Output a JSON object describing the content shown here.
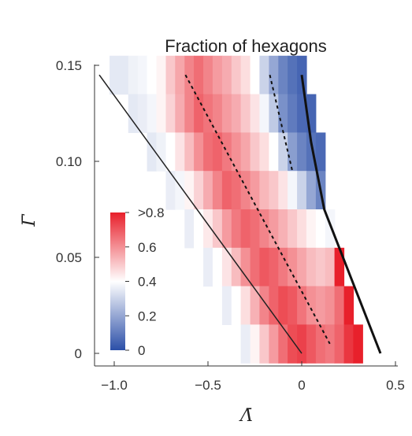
{
  "chart_data": {
    "type": "heatmap",
    "title": "Fraction of hexagons",
    "xlabel": "Λ̄",
    "ylabel": "Γ̄",
    "xlim": [
      -1.1,
      0.5
    ],
    "ylim": [
      0,
      0.15
    ],
    "x_ticks": [
      "−1.0",
      "−0.5",
      "0",
      "0.5"
    ],
    "x_tick_values": [
      -1.0,
      -0.5,
      0,
      0.5
    ],
    "y_ticks": [
      "0",
      "0.05",
      "0.10",
      "0.15"
    ],
    "y_tick_values": [
      0,
      0.05,
      0.1,
      0.15
    ],
    "grid": false,
    "colorbar": {
      "labels": [
        ">0.8",
        "0.6",
        "0.4",
        "0.2",
        "0"
      ],
      "values": [
        0.8,
        0.6,
        0.4,
        0.2,
        0
      ],
      "colors": {
        "low": "#2b4fa8",
        "mid": "#ffffff",
        "high": "#e8202b"
      },
      "placement": "inside-left"
    },
    "heatmap_rows": [
      {
        "y": 0.145,
        "cells": [
          {
            "x": -1.0,
            "v": 0.35
          },
          {
            "x": -0.95,
            "v": 0.35
          },
          {
            "x": -0.9,
            "v": 0.37
          },
          {
            "x": -0.85,
            "v": 0.38
          },
          {
            "x": -0.8,
            "v": 0.4
          },
          {
            "x": -0.75,
            "v": 0.42
          },
          {
            "x": -0.7,
            "v": 0.5
          },
          {
            "x": -0.65,
            "v": 0.56
          },
          {
            "x": -0.6,
            "v": 0.62
          },
          {
            "x": -0.55,
            "v": 0.66
          },
          {
            "x": -0.5,
            "v": 0.62
          },
          {
            "x": -0.45,
            "v": 0.58
          },
          {
            "x": -0.4,
            "v": 0.55
          },
          {
            "x": -0.35,
            "v": 0.5
          },
          {
            "x": -0.3,
            "v": 0.46
          },
          {
            "x": -0.25,
            "v": 0.4
          },
          {
            "x": -0.2,
            "v": 0.3
          },
          {
            "x": -0.15,
            "v": 0.2
          },
          {
            "x": -0.1,
            "v": 0.12
          },
          {
            "x": -0.05,
            "v": 0.08
          },
          {
            "x": 0.0,
            "v": 0.05
          }
        ]
      },
      {
        "y": 0.125,
        "cells": [
          {
            "x": -0.9,
            "v": 0.35
          },
          {
            "x": -0.85,
            "v": 0.36
          },
          {
            "x": -0.8,
            "v": 0.38
          },
          {
            "x": -0.75,
            "v": 0.42
          },
          {
            "x": -0.7,
            "v": 0.48
          },
          {
            "x": -0.65,
            "v": 0.55
          },
          {
            "x": -0.6,
            "v": 0.62
          },
          {
            "x": -0.55,
            "v": 0.68
          },
          {
            "x": -0.5,
            "v": 0.65
          },
          {
            "x": -0.45,
            "v": 0.62
          },
          {
            "x": -0.4,
            "v": 0.58
          },
          {
            "x": -0.35,
            "v": 0.55
          },
          {
            "x": -0.3,
            "v": 0.5
          },
          {
            "x": -0.25,
            "v": 0.45
          },
          {
            "x": -0.2,
            "v": 0.38
          },
          {
            "x": -0.15,
            "v": 0.28
          },
          {
            "x": -0.1,
            "v": 0.15
          },
          {
            "x": -0.05,
            "v": 0.1
          },
          {
            "x": 0.0,
            "v": 0.06
          },
          {
            "x": 0.05,
            "v": 0.05
          }
        ]
      },
      {
        "y": 0.105,
        "cells": [
          {
            "x": -0.8,
            "v": 0.35
          },
          {
            "x": -0.75,
            "v": 0.37
          },
          {
            "x": -0.7,
            "v": 0.4
          },
          {
            "x": -0.65,
            "v": 0.45
          },
          {
            "x": -0.6,
            "v": 0.52
          },
          {
            "x": -0.55,
            "v": 0.6
          },
          {
            "x": -0.5,
            "v": 0.66
          },
          {
            "x": -0.45,
            "v": 0.68
          },
          {
            "x": -0.4,
            "v": 0.64
          },
          {
            "x": -0.35,
            "v": 0.6
          },
          {
            "x": -0.3,
            "v": 0.56
          },
          {
            "x": -0.25,
            "v": 0.5
          },
          {
            "x": -0.2,
            "v": 0.46
          },
          {
            "x": -0.15,
            "v": 0.4
          },
          {
            "x": -0.1,
            "v": 0.3
          },
          {
            "x": -0.05,
            "v": 0.18
          },
          {
            "x": 0.0,
            "v": 0.12
          },
          {
            "x": 0.05,
            "v": 0.08
          },
          {
            "x": 0.1,
            "v": 0.06
          }
        ]
      },
      {
        "y": 0.085,
        "cells": [
          {
            "x": -0.7,
            "v": 0.36
          },
          {
            "x": -0.65,
            "v": 0.38
          },
          {
            "x": -0.6,
            "v": 0.42
          },
          {
            "x": -0.55,
            "v": 0.48
          },
          {
            "x": -0.5,
            "v": 0.55
          },
          {
            "x": -0.45,
            "v": 0.62
          },
          {
            "x": -0.4,
            "v": 0.68
          },
          {
            "x": -0.35,
            "v": 0.66
          },
          {
            "x": -0.3,
            "v": 0.62
          },
          {
            "x": -0.25,
            "v": 0.58
          },
          {
            "x": -0.2,
            "v": 0.53
          },
          {
            "x": -0.15,
            "v": 0.5
          },
          {
            "x": -0.1,
            "v": 0.45
          },
          {
            "x": -0.05,
            "v": 0.38
          },
          {
            "x": 0.0,
            "v": 0.3
          },
          {
            "x": 0.05,
            "v": 0.2
          },
          {
            "x": 0.1,
            "v": 0.12
          }
        ]
      },
      {
        "y": 0.065,
        "cells": [
          {
            "x": -0.6,
            "v": 0.36
          },
          {
            "x": -0.55,
            "v": 0.4
          },
          {
            "x": -0.5,
            "v": 0.44
          },
          {
            "x": -0.45,
            "v": 0.5
          },
          {
            "x": -0.4,
            "v": 0.58
          },
          {
            "x": -0.35,
            "v": 0.64
          },
          {
            "x": -0.3,
            "v": 0.68
          },
          {
            "x": -0.25,
            "v": 0.66
          },
          {
            "x": -0.2,
            "v": 0.62
          },
          {
            "x": -0.15,
            "v": 0.58
          },
          {
            "x": -0.1,
            "v": 0.54
          },
          {
            "x": -0.05,
            "v": 0.5
          },
          {
            "x": 0.0,
            "v": 0.46
          },
          {
            "x": 0.05,
            "v": 0.42
          },
          {
            "x": 0.1,
            "v": 0.4
          },
          {
            "x": 0.15,
            "v": 0.38
          }
        ]
      },
      {
        "y": 0.045,
        "cells": [
          {
            "x": -0.5,
            "v": 0.36
          },
          {
            "x": -0.45,
            "v": 0.4
          },
          {
            "x": -0.4,
            "v": 0.45
          },
          {
            "x": -0.35,
            "v": 0.52
          },
          {
            "x": -0.3,
            "v": 0.6
          },
          {
            "x": -0.25,
            "v": 0.66
          },
          {
            "x": -0.2,
            "v": 0.7
          },
          {
            "x": -0.15,
            "v": 0.68
          },
          {
            "x": -0.1,
            "v": 0.64
          },
          {
            "x": -0.05,
            "v": 0.6
          },
          {
            "x": 0.0,
            "v": 0.56
          },
          {
            "x": 0.05,
            "v": 0.52
          },
          {
            "x": 0.1,
            "v": 0.5
          },
          {
            "x": 0.15,
            "v": 0.52
          },
          {
            "x": 0.2,
            "v": 0.8
          }
        ]
      },
      {
        "y": 0.025,
        "cells": [
          {
            "x": -0.4,
            "v": 0.36
          },
          {
            "x": -0.35,
            "v": 0.4
          },
          {
            "x": -0.3,
            "v": 0.46
          },
          {
            "x": -0.25,
            "v": 0.54
          },
          {
            "x": -0.2,
            "v": 0.62
          },
          {
            "x": -0.15,
            "v": 0.68
          },
          {
            "x": -0.1,
            "v": 0.72
          },
          {
            "x": -0.05,
            "v": 0.7
          },
          {
            "x": 0.0,
            "v": 0.65
          },
          {
            "x": 0.05,
            "v": 0.6
          },
          {
            "x": 0.1,
            "v": 0.58
          },
          {
            "x": 0.15,
            "v": 0.6
          },
          {
            "x": 0.2,
            "v": 0.66
          },
          {
            "x": 0.25,
            "v": 0.8
          }
        ]
      },
      {
        "y": 0.005,
        "cells": [
          {
            "x": -0.3,
            "v": 0.36
          },
          {
            "x": -0.25,
            "v": 0.42
          },
          {
            "x": -0.2,
            "v": 0.5
          },
          {
            "x": -0.15,
            "v": 0.58
          },
          {
            "x": -0.1,
            "v": 0.66
          },
          {
            "x": -0.05,
            "v": 0.72
          },
          {
            "x": 0.0,
            "v": 0.74
          },
          {
            "x": 0.05,
            "v": 0.7
          },
          {
            "x": 0.1,
            "v": 0.66
          },
          {
            "x": 0.15,
            "v": 0.64
          },
          {
            "x": 0.2,
            "v": 0.68
          },
          {
            "x": 0.25,
            "v": 0.76
          },
          {
            "x": 0.3,
            "v": 0.8
          }
        ]
      }
    ],
    "cell_size": {
      "dx": 0.05,
      "dy": 0.02
    },
    "boundaries": {
      "left_line": [
        [
          -1.08,
          0.145
        ],
        [
          0.0,
          0.0
        ]
      ],
      "right_solid": [
        [
          0.0,
          0.145
        ],
        [
          0.05,
          0.11
        ],
        [
          0.12,
          0.075
        ],
        [
          0.42,
          0.0
        ]
      ],
      "dashed_1": [
        [
          -0.62,
          0.145
        ],
        [
          0.15,
          0.005
        ]
      ],
      "dashed_2": [
        [
          -0.17,
          0.145
        ],
        [
          -0.05,
          0.095
        ]
      ]
    }
  }
}
